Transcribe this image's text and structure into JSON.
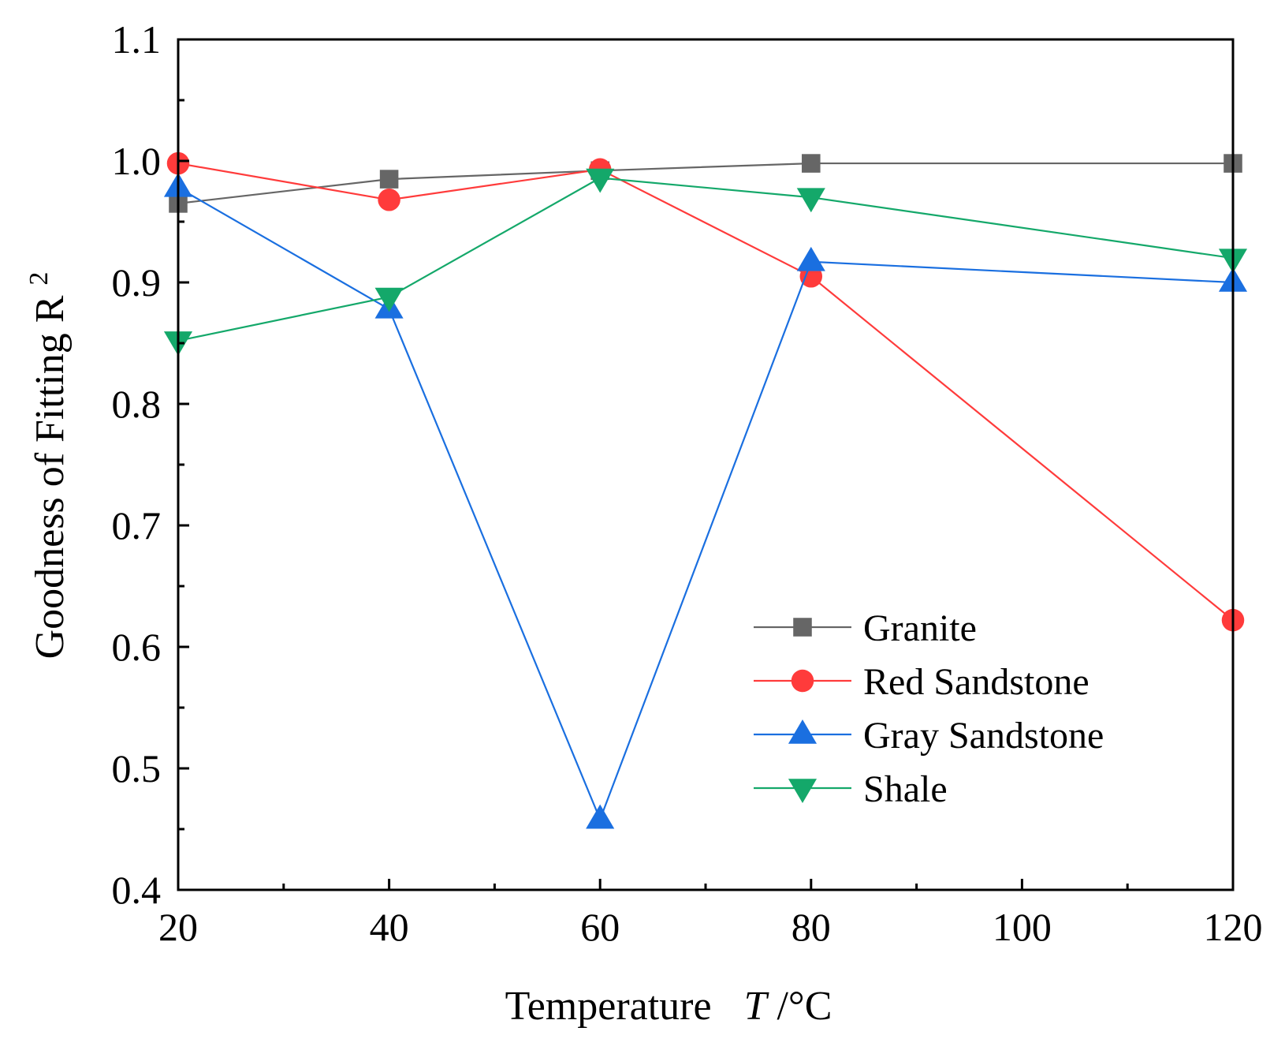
{
  "chart_data": {
    "type": "line",
    "title": "",
    "xlabel": {
      "prefix": "Temperature",
      "variable": "T",
      "unit": "/°C"
    },
    "ylabel": {
      "text": "Goodness of Fitting R",
      "superscript": "2"
    },
    "xlim": [
      20,
      120
    ],
    "ylim": [
      0.4,
      1.1
    ],
    "x_ticks": [
      20,
      40,
      60,
      80,
      100,
      120
    ],
    "y_ticks": [
      "0.4",
      "0.5",
      "0.6",
      "0.7",
      "0.8",
      "0.9",
      "1.0",
      "1.1"
    ],
    "x": [
      20,
      40,
      60,
      80,
      120
    ],
    "grid": false,
    "legend_position": "lower-right",
    "series": [
      {
        "name": "Granite",
        "marker": "square",
        "color": "#666666",
        "values": [
          0.965,
          0.985,
          0.992,
          0.998,
          0.998
        ]
      },
      {
        "name": "Red Sandstone",
        "marker": "circle",
        "color": "#ff3b3b",
        "values": [
          0.998,
          0.968,
          0.993,
          0.905,
          0.622
        ]
      },
      {
        "name": "Gray Sandstone",
        "marker": "triangle-up",
        "color": "#1a6fe0",
        "values": [
          0.978,
          0.878,
          0.458,
          0.917,
          0.9
        ]
      },
      {
        "name": "Shale",
        "marker": "triangle-down",
        "color": "#14a86a",
        "values": [
          0.852,
          0.888,
          0.986,
          0.97,
          0.92
        ]
      }
    ]
  }
}
